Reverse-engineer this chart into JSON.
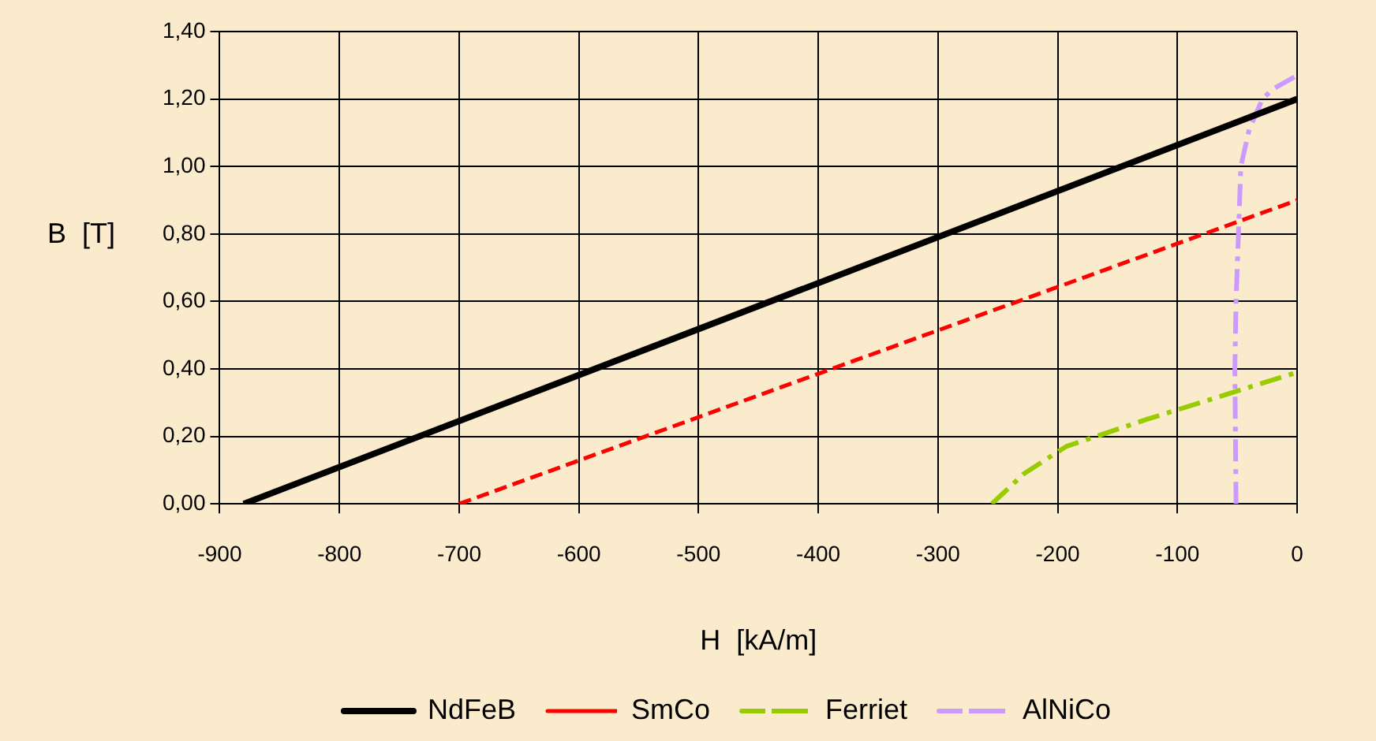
{
  "chart_data": {
    "type": "line",
    "xlabel": "H  [kA/m]",
    "ylabel": "B  [T]",
    "xlim": [
      -900,
      0
    ],
    "xticks": [
      -900,
      -800,
      -700,
      -600,
      -500,
      -400,
      -300,
      -200,
      -100,
      0
    ],
    "ylim": [
      0,
      1.4
    ],
    "yticks": [
      {
        "value": 0,
        "label": "0,00"
      },
      {
        "value": 0.2,
        "label": "0,20"
      },
      {
        "value": 0.4,
        "label": "0,40"
      },
      {
        "value": 0.6,
        "label": "0,60"
      },
      {
        "value": 0.8,
        "label": "0,80"
      },
      {
        "value": 1,
        "label": "1,00"
      },
      {
        "value": 1.2,
        "label": "1,20"
      },
      {
        "value": 1.4,
        "label": "1,40"
      }
    ],
    "grid": true,
    "legend": "bottom",
    "marker": "none",
    "series": [
      {
        "name": "NdFeB",
        "color": "#000000",
        "line_style": "solid",
        "x": [
          -880,
          0
        ],
        "values": [
          0,
          1.2
        ]
      },
      {
        "name": "SmCo",
        "color": "#ff0000",
        "line_style": "dashed",
        "x": [
          -700,
          0
        ],
        "values": [
          0,
          0.9
        ]
      },
      {
        "name": "Ferriet",
        "color": "#99cc00",
        "line_style": "dashdot",
        "x": [
          -255,
          -240,
          -228,
          -193,
          -126,
          0
        ],
        "values": [
          0,
          0.05,
          0.09,
          0.17,
          0.25,
          0.39
        ]
      },
      {
        "name": "AlNiCo",
        "color": "#cc99ff",
        "line_style": "dashdot",
        "x": [
          -51,
          -52,
          -51,
          -49,
          -47,
          -40,
          -29,
          -20,
          0
        ],
        "values": [
          0,
          0.4,
          0.6,
          0.8,
          1.0,
          1.11,
          1.2,
          1.23,
          1.27
        ]
      }
    ]
  }
}
